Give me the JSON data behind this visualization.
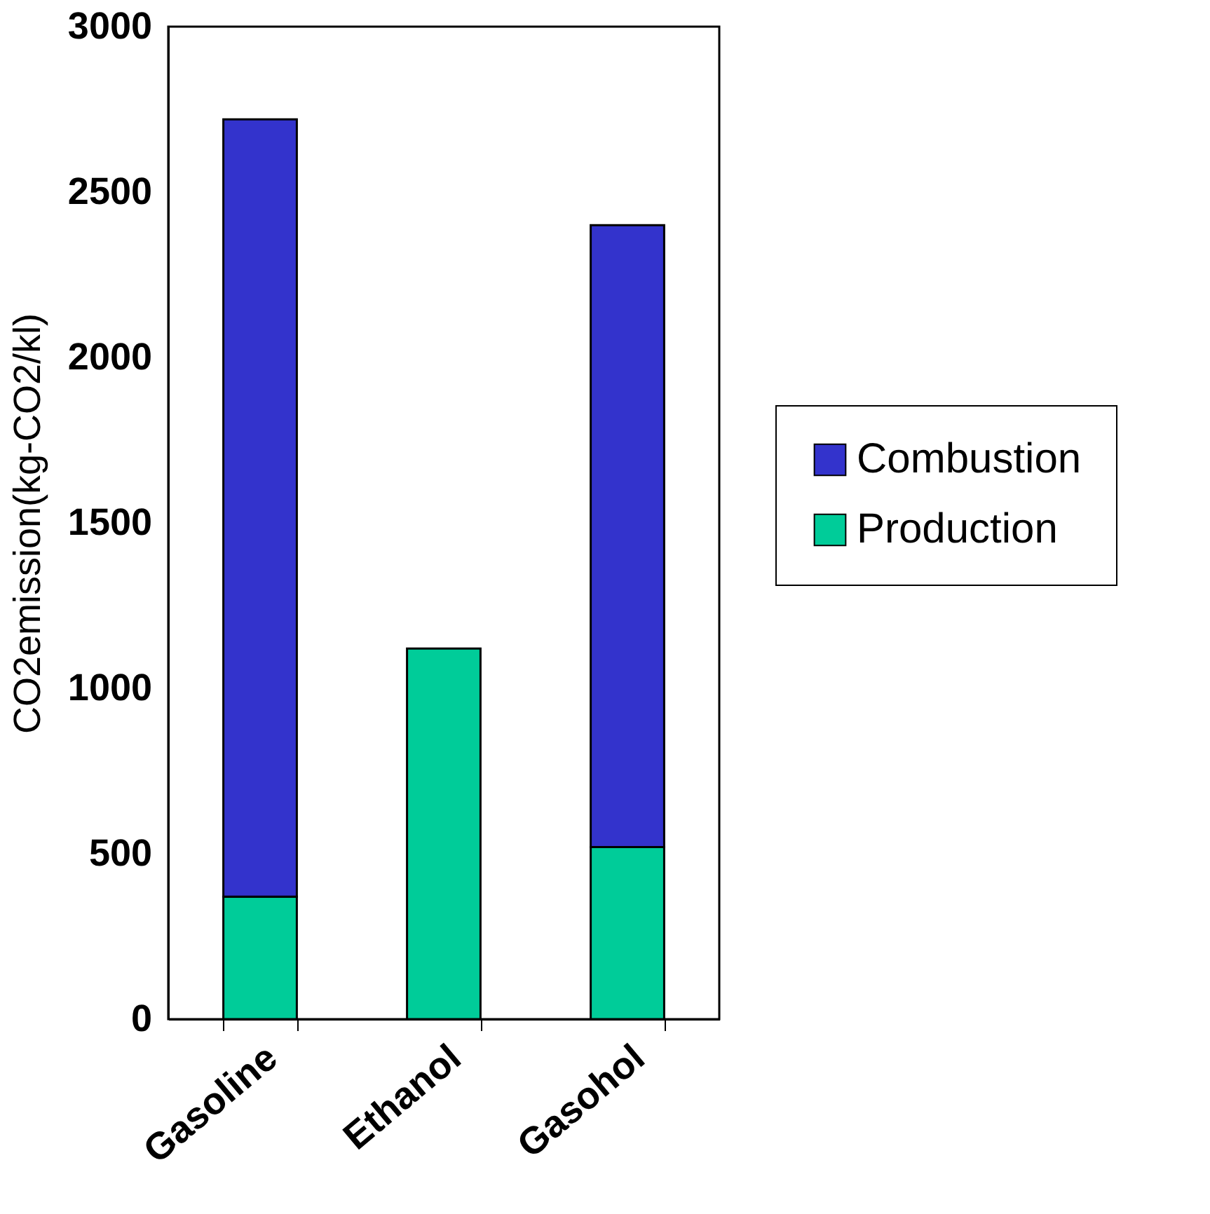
{
  "chart_data": {
    "type": "bar",
    "stacked": true,
    "ylabel": "CO2emission(kg-CO2/kl)",
    "categories": [
      "Gasoline",
      "Ethanol",
      "Gasohol"
    ],
    "series": [
      {
        "name": "Production",
        "color": "#00cc99",
        "values": [
          370,
          1120,
          520
        ]
      },
      {
        "name": "Combustion",
        "color": "#3333cc",
        "values": [
          2350,
          null,
          1880
        ]
      }
    ],
    "ylim": [
      0,
      3000
    ],
    "yticks": [
      0,
      500,
      1000,
      1500,
      2000,
      2500,
      3000
    ],
    "grid": false,
    "legend": "right"
  }
}
